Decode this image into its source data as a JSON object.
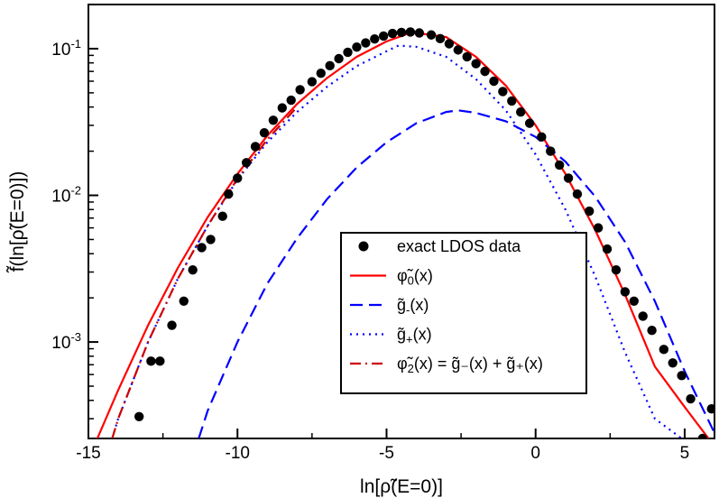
{
  "chart_data": {
    "type": "scatter",
    "title": "",
    "xlabel": "ln[ρ̃(E=0)]",
    "ylabel": "f̃(ln[ρ̃(E=0)])",
    "xlim": [
      -15,
      6
    ],
    "ylim": [
      0.00022,
      0.2
    ],
    "yscale": "log",
    "x_ticks": [
      -15,
      -10,
      -5,
      0,
      5
    ],
    "x_tick_labels": [
      "-15",
      "-10",
      "-5",
      "0",
      "5"
    ],
    "y_ticks": [
      0.001,
      0.01,
      0.1
    ],
    "y_tick_labels": [
      {
        "base": "10",
        "exp": "-3"
      },
      {
        "base": "10",
        "exp": "-2"
      },
      {
        "base": "10",
        "exp": "-1"
      }
    ],
    "legend_position": "center-right",
    "series": [
      {
        "name": "exact LDOS data",
        "label_main": "exact LDOS data",
        "label_sub": "",
        "label_rest": "",
        "kind": "scatter",
        "color": "#000000",
        "points": [
          [
            -13.3,
            0.00031
          ],
          [
            -12.9,
            0.00074
          ],
          [
            -12.6,
            0.00074
          ],
          [
            -12.2,
            0.0013
          ],
          [
            -11.8,
            0.0019
          ],
          [
            -11.5,
            0.0031
          ],
          [
            -11.2,
            0.0044
          ],
          [
            -10.9,
            0.005
          ],
          [
            -10.5,
            0.0072
          ],
          [
            -10.3,
            0.0102
          ],
          [
            -10.0,
            0.0131
          ],
          [
            -9.7,
            0.0167
          ],
          [
            -9.4,
            0.0215
          ],
          [
            -9.1,
            0.0267
          ],
          [
            -8.8,
            0.0325
          ],
          [
            -8.5,
            0.0395
          ],
          [
            -8.2,
            0.0445
          ],
          [
            -7.9,
            0.0525
          ],
          [
            -7.5,
            0.0595
          ],
          [
            -7.2,
            0.068
          ],
          [
            -6.9,
            0.0765
          ],
          [
            -6.6,
            0.0855
          ],
          [
            -6.3,
            0.0945
          ],
          [
            -6.0,
            0.1025
          ],
          [
            -5.7,
            0.1095
          ],
          [
            -5.4,
            0.1165
          ],
          [
            -5.1,
            0.122
          ],
          [
            -4.8,
            0.127
          ],
          [
            -4.5,
            0.129
          ],
          [
            -4.2,
            0.13
          ],
          [
            -3.9,
            0.128
          ],
          [
            -3.5,
            0.124
          ],
          [
            -3.2,
            0.117
          ],
          [
            -2.9,
            0.108
          ],
          [
            -2.6,
            0.098
          ],
          [
            -2.3,
            0.088
          ],
          [
            -2.0,
            0.079
          ],
          [
            -1.7,
            0.07
          ],
          [
            -1.4,
            0.06
          ],
          [
            -1.1,
            0.051
          ],
          [
            -0.8,
            0.044
          ],
          [
            -0.5,
            0.037
          ],
          [
            -0.2,
            0.031
          ],
          [
            0.2,
            0.025
          ],
          [
            0.5,
            0.02
          ],
          [
            0.8,
            0.0161
          ],
          [
            1.1,
            0.0131
          ],
          [
            1.4,
            0.0102
          ],
          [
            1.8,
            0.0078
          ],
          [
            2.1,
            0.006
          ],
          [
            2.4,
            0.0043
          ],
          [
            2.7,
            0.0031
          ],
          [
            3.0,
            0.0022
          ],
          [
            3.3,
            0.0019
          ],
          [
            3.6,
            0.0015
          ],
          [
            3.9,
            0.0012
          ],
          [
            4.3,
            0.00089
          ],
          [
            4.6,
            0.00072
          ],
          [
            4.9,
            0.00059
          ],
          [
            5.2,
            0.00041
          ],
          [
            5.6,
            0.00022
          ],
          [
            5.9,
            0.00035
          ]
        ]
      },
      {
        "name": "φ̃0(x)",
        "label_main": "φ̃",
        "label_sub": "0",
        "label_rest": "(x)",
        "kind": "line",
        "style": "solid",
        "color": "#ff0000",
        "points": [
          [
            -14.7,
            0.00022
          ],
          [
            -14.0,
            0.00047
          ],
          [
            -13.0,
            0.0013
          ],
          [
            -12.0,
            0.0032
          ],
          [
            -11.0,
            0.0071
          ],
          [
            -10.0,
            0.014
          ],
          [
            -9.0,
            0.0255
          ],
          [
            -8.0,
            0.042
          ],
          [
            -7.0,
            0.063
          ],
          [
            -6.0,
            0.088
          ],
          [
            -5.0,
            0.112
          ],
          [
            -4.3,
            0.126
          ],
          [
            -4.0,
            0.128
          ],
          [
            -3.0,
            0.12
          ],
          [
            -2.0,
            0.088
          ],
          [
            -1.0,
            0.056
          ],
          [
            0.0,
            0.03
          ],
          [
            1.0,
            0.014
          ],
          [
            2.0,
            0.0058
          ],
          [
            3.0,
            0.0021
          ],
          [
            4.0,
            0.00068
          ],
          [
            5.0,
            0.00036
          ],
          [
            5.8,
            0.00022
          ]
        ]
      },
      {
        "name": "g̃-(x)",
        "label_main": "g̃",
        "label_sub": "-",
        "label_rest": "(x)",
        "kind": "line",
        "style": "dashed",
        "color": "#0000ff",
        "points": [
          [
            -11.3,
            0.00022
          ],
          [
            -11.0,
            0.00034
          ],
          [
            -10.0,
            0.001
          ],
          [
            -9.0,
            0.0025
          ],
          [
            -8.0,
            0.0051
          ],
          [
            -7.0,
            0.0094
          ],
          [
            -6.0,
            0.0155
          ],
          [
            -5.0,
            0.023
          ],
          [
            -4.0,
            0.031
          ],
          [
            -3.0,
            0.037
          ],
          [
            -2.6,
            0.038
          ],
          [
            -2.0,
            0.0365
          ],
          [
            -1.0,
            0.032
          ],
          [
            0.0,
            0.025
          ],
          [
            1.0,
            0.017
          ],
          [
            2.0,
            0.0098
          ],
          [
            3.0,
            0.0048
          ],
          [
            4.0,
            0.0019
          ],
          [
            5.0,
            0.00063
          ],
          [
            6.0,
            0.00024
          ]
        ]
      },
      {
        "name": "g̃+(x)",
        "label_main": "g̃",
        "label_sub": "+",
        "label_rest": "(x)",
        "kind": "line",
        "style": "dotted",
        "color": "#0000ff",
        "points": [
          [
            -14.2,
            0.00022
          ],
          [
            -14.0,
            0.0003
          ],
          [
            -13.0,
            0.001
          ],
          [
            -12.0,
            0.0027
          ],
          [
            -11.0,
            0.0062
          ],
          [
            -10.0,
            0.0128
          ],
          [
            -9.0,
            0.023
          ],
          [
            -8.0,
            0.037
          ],
          [
            -7.0,
            0.055
          ],
          [
            -6.0,
            0.076
          ],
          [
            -5.0,
            0.096
          ],
          [
            -4.6,
            0.105
          ],
          [
            -4.0,
            0.103
          ],
          [
            -3.0,
            0.088
          ],
          [
            -2.0,
            0.062
          ],
          [
            -1.0,
            0.038
          ],
          [
            0.0,
            0.019
          ],
          [
            1.0,
            0.008
          ],
          [
            2.0,
            0.0028
          ],
          [
            3.0,
            0.00085
          ],
          [
            4.0,
            0.0003
          ],
          [
            4.9,
            0.00022
          ]
        ]
      },
      {
        "name": "φ̃2(x) = g̃-(x) + g̃+(x)",
        "label_main": "φ̃",
        "label_sub": "2",
        "label_rest": "(x) = g̃₋(x) + g̃₊(x)",
        "kind": "line",
        "style": "dashdot",
        "color": "#cc0000",
        "points": [
          [
            -14.2,
            0.00022
          ],
          [
            -14.0,
            0.0003
          ],
          [
            -13.0,
            0.001
          ],
          [
            -12.0,
            0.0027
          ],
          [
            -11.0,
            0.0062
          ],
          [
            -10.0,
            0.013
          ],
          [
            -9.0,
            0.024
          ],
          [
            -8.0,
            0.04
          ]
        ]
      }
    ]
  }
}
